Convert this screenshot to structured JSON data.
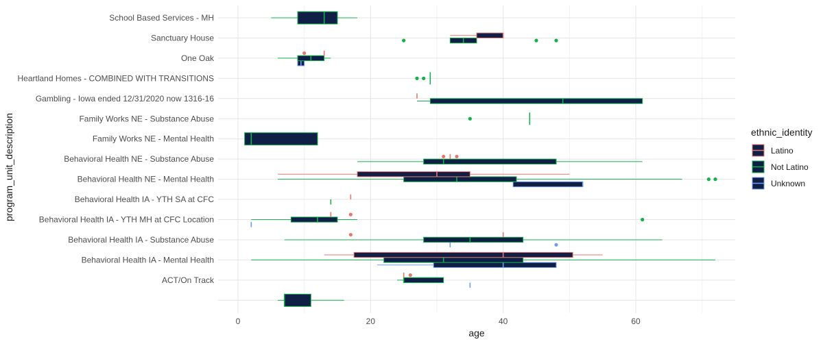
{
  "chart_data": {
    "type": "boxplot",
    "xlabel": "age",
    "ylabel": "program_unit_description",
    "xlim": [
      -3,
      75
    ],
    "x_ticks": [
      0,
      20,
      40,
      60
    ],
    "grid": true,
    "legend": {
      "title": "ethnic_identity",
      "position": "right",
      "entries": [
        {
          "name": "Latino",
          "color": "#e8766e"
        },
        {
          "name": "Not Latino",
          "color": "#14b04a"
        },
        {
          "name": "Unknown",
          "color": "#6f9bf0"
        }
      ]
    },
    "box_fill": "#0f1f45",
    "categories": [
      "School Based Services - MH",
      "Sanctuary House",
      "One Oak",
      "Heartland Homes - COMBINED WITH TRANSITIONS",
      "Gambling - Iowa ended 12/31/2020 now 1316-16",
      "Family Works NE - Substance Abuse",
      "Family Works NE - Mental Health",
      "Behavioral Health NE - Substance Abuse",
      "Behavioral Health NE - Mental Health",
      "Behavioral Health IA - YTH SA at CFC",
      "Behavioral Health IA - YTH MH at CFC Location",
      "Behavioral Health IA - Substance Abuse",
      "Behavioral Health IA -  Mental Health",
      "ACT/On Track",
      ""
    ],
    "boxes": [
      {
        "row": 0,
        "group": "Not Latino",
        "q": [
          5,
          9,
          13,
          15,
          18
        ],
        "outliers": []
      },
      {
        "row": 1,
        "group": "Not Latino",
        "q": [
          32,
          32,
          34,
          36,
          36
        ],
        "outliers": [
          25,
          45,
          48
        ]
      },
      {
        "row": 1,
        "group": "Latino",
        "q": [
          32,
          36,
          40,
          40,
          40
        ],
        "outliers": []
      },
      {
        "row": 2,
        "group": "Unknown",
        "q": [
          9,
          9,
          9.5,
          10,
          10
        ],
        "outliers": []
      },
      {
        "row": 2,
        "group": "Not Latino",
        "q": [
          6,
          9,
          11,
          13,
          14
        ],
        "outliers": []
      },
      {
        "row": 2,
        "group": "Latino",
        "q": [
          13,
          13,
          13,
          13,
          13
        ],
        "outliers": [
          10
        ]
      },
      {
        "row": 3,
        "group": "Not Latino",
        "q": [
          29,
          29,
          29,
          29,
          29
        ],
        "outliers": [
          27,
          28
        ]
      },
      {
        "row": 4,
        "group": "Not Latino",
        "q": [
          27,
          29,
          49,
          61,
          61
        ],
        "outliers": []
      },
      {
        "row": 4,
        "group": "Latino",
        "q": [
          27,
          27,
          27,
          27,
          27
        ],
        "outliers": []
      },
      {
        "row": 5,
        "group": "Not Latino",
        "q": [
          44,
          44,
          44,
          44,
          44
        ],
        "outliers": [
          35
        ]
      },
      {
        "row": 6,
        "group": "Not Latino",
        "q": [
          1,
          1,
          2,
          12,
          12
        ],
        "outliers": []
      },
      {
        "row": 7,
        "group": "Not Latino",
        "q": [
          18,
          28,
          31,
          48,
          61
        ],
        "outliers": []
      },
      {
        "row": 7,
        "group": "Latino",
        "q": [
          32,
          32,
          32,
          32,
          32
        ],
        "outliers": [
          31,
          33
        ]
      },
      {
        "row": 8,
        "group": "Unknown",
        "q": [
          41.5,
          41.5,
          52,
          52,
          52
        ],
        "outliers": []
      },
      {
        "row": 8,
        "group": "Not Latino",
        "q": [
          6,
          25,
          33,
          42,
          67
        ],
        "outliers": [
          71,
          72
        ]
      },
      {
        "row": 8,
        "group": "Latino",
        "q": [
          6,
          18,
          30,
          35,
          50
        ],
        "outliers": []
      },
      {
        "row": 9,
        "group": "Not Latino",
        "q": [
          14,
          14,
          14,
          14,
          14
        ],
        "outliers": []
      },
      {
        "row": 9,
        "group": "Latino",
        "q": [
          17,
          17,
          17,
          17,
          17
        ],
        "outliers": []
      },
      {
        "row": 10,
        "group": "Unknown",
        "q": [
          2,
          2,
          2,
          2,
          2
        ],
        "outliers": []
      },
      {
        "row": 10,
        "group": "Not Latino",
        "q": [
          2,
          8,
          12,
          15,
          18
        ],
        "outliers": [
          61
        ]
      },
      {
        "row": 10,
        "group": "Latino",
        "q": [
          14,
          14,
          14,
          14,
          14
        ],
        "outliers": [
          17
        ]
      },
      {
        "row": 11,
        "group": "Unknown",
        "q": [
          32,
          32,
          32,
          32,
          32
        ],
        "outliers": [
          48
        ]
      },
      {
        "row": 11,
        "group": "Not Latino",
        "q": [
          7,
          28,
          35,
          43,
          64
        ],
        "outliers": []
      },
      {
        "row": 11,
        "group": "Latino",
        "q": [
          40,
          40,
          40,
          40,
          40
        ],
        "outliers": [
          17
        ]
      },
      {
        "row": 12,
        "group": "Unknown",
        "q": [
          21,
          29.5,
          40,
          48,
          48
        ],
        "outliers": []
      },
      {
        "row": 12,
        "group": "Not Latino",
        "q": [
          2,
          22,
          31,
          43,
          72
        ],
        "outliers": []
      },
      {
        "row": 12,
        "group": "Latino",
        "q": [
          13,
          17.5,
          40,
          50.5,
          55
        ],
        "outliers": []
      },
      {
        "row": 13,
        "group": "Unknown",
        "q": [
          35,
          35,
          35,
          35,
          35
        ],
        "outliers": []
      },
      {
        "row": 13,
        "group": "Not Latino",
        "q": [
          24,
          25,
          25,
          31,
          31
        ],
        "outliers": []
      },
      {
        "row": 13,
        "group": "Latino",
        "q": [
          25,
          25,
          25,
          25,
          25
        ],
        "outliers": [
          26
        ]
      },
      {
        "row": 14,
        "group": "Not Latino",
        "q": [
          6,
          7,
          7,
          11,
          16
        ],
        "outliers": []
      }
    ]
  }
}
